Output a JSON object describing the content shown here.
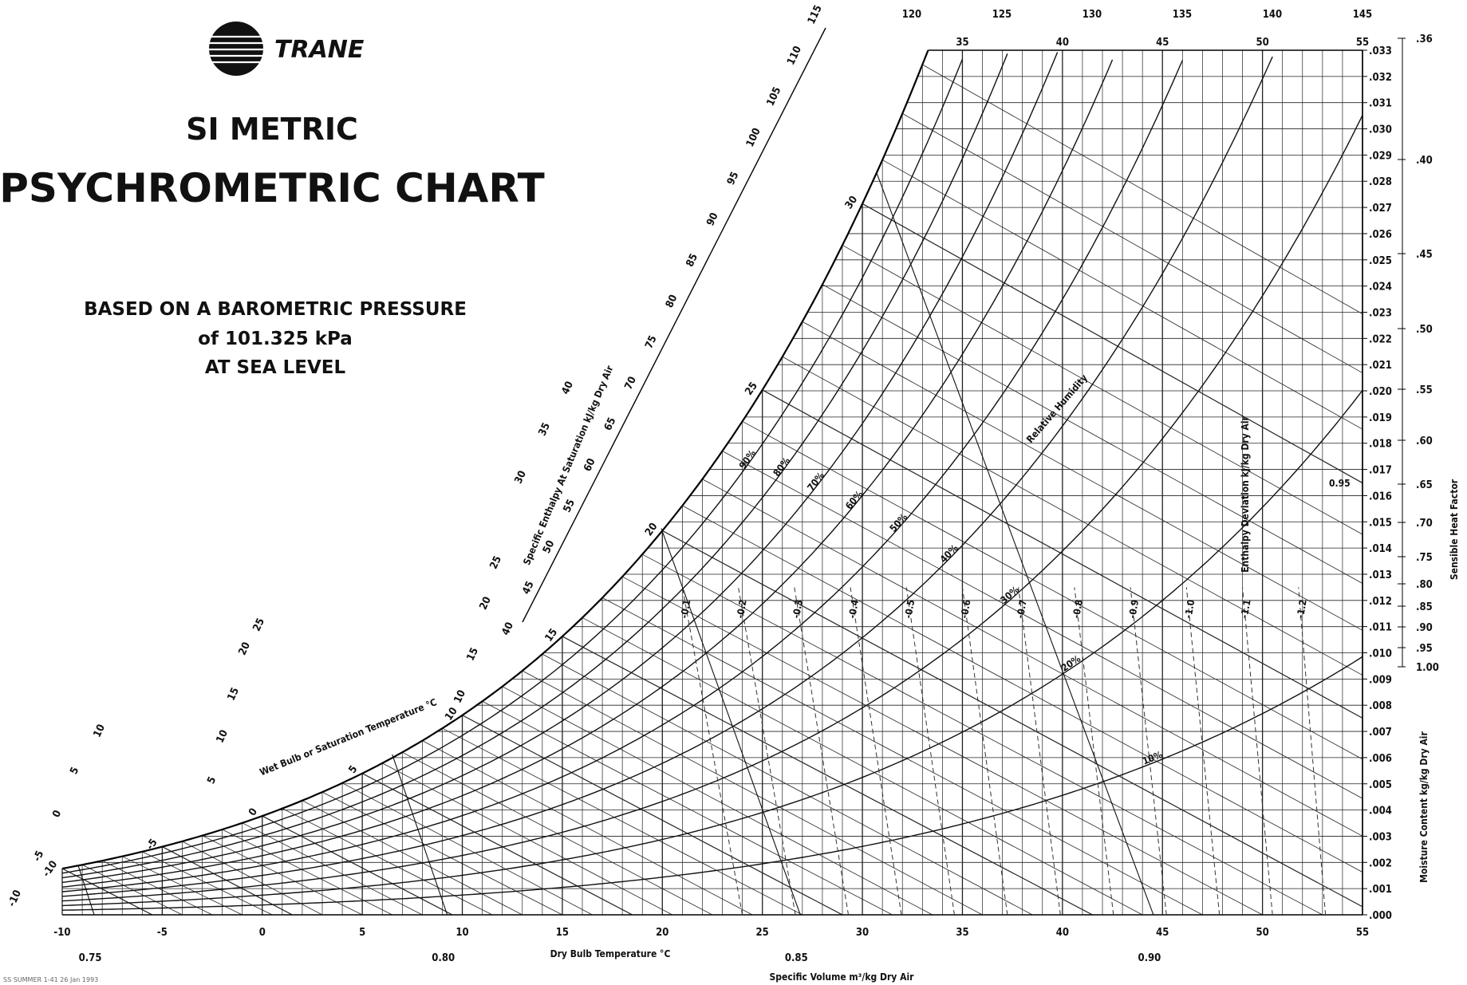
{
  "brand": {
    "name": "TRANE",
    "color": "#111111"
  },
  "title": {
    "line1": "SI METRIC",
    "line2": "PSYCHROMETRIC CHART"
  },
  "subtitle": {
    "line1": "BASED ON A BAROMETRIC PRESSURE",
    "line2": "of 101.325 kPa",
    "line3": "AT SEA LEVEL"
  },
  "footer_code": "SS SUMMER 1-41  26 Jan 1993",
  "chart_data": {
    "type": "psychrometric",
    "pressure_kPa": 101.325,
    "x_axis": {
      "label": "Dry Bulb Temperature °C",
      "range": [
        -10,
        55
      ],
      "ticks": [
        -10,
        -5,
        0,
        5,
        10,
        15,
        20,
        25,
        30,
        35,
        40,
        45,
        50,
        55
      ],
      "tick_labels": [
        "-10",
        "-5",
        "0",
        "5",
        "10",
        "15",
        "20",
        "25",
        "30",
        "35",
        "40",
        "45",
        "50",
        "55"
      ],
      "top_tick_labels": [
        "35",
        "40",
        "45",
        "50",
        "55"
      ]
    },
    "y_axis": {
      "label": "Moisture Content  kg/kg Dry Air",
      "range": [
        0,
        0.033
      ],
      "ticks": [
        0.0,
        0.001,
        0.002,
        0.003,
        0.004,
        0.005,
        0.006,
        0.007,
        0.008,
        0.009,
        0.01,
        0.011,
        0.012,
        0.013,
        0.014,
        0.015,
        0.016,
        0.017,
        0.018,
        0.019,
        0.02,
        0.021,
        0.022,
        0.023,
        0.024,
        0.025,
        0.026,
        0.027,
        0.028,
        0.029,
        0.03,
        0.031,
        0.032,
        0.033
      ],
      "tick_labels": [
        ".000",
        ".001",
        ".002",
        ".003",
        ".004",
        ".005",
        ".006",
        ".007",
        ".008",
        ".009",
        ".010",
        ".011",
        ".012",
        ".013",
        ".014",
        ".015",
        ".016",
        ".017",
        ".018",
        ".019",
        ".020",
        ".021",
        ".022",
        ".023",
        ".024",
        ".025",
        ".026",
        ".027",
        ".028",
        ".029",
        ".030",
        ".031",
        ".032",
        ".033"
      ]
    },
    "relative_humidity": {
      "label": "Relative Humidity",
      "values": [
        10,
        20,
        30,
        40,
        50,
        60,
        70,
        80,
        90
      ],
      "labels": [
        "10%",
        "20%",
        "30%",
        "40%",
        "50%",
        "60%",
        "70%",
        "80%",
        "90%"
      ]
    },
    "wet_bulb": {
      "label": "Wet Bulb or Saturation Temperature °C",
      "values": [
        -10,
        -5,
        0,
        5,
        10,
        15,
        20,
        25,
        30
      ],
      "labels": [
        "-10",
        "-5",
        "0",
        "5",
        "10",
        "15",
        "20",
        "25",
        "30"
      ]
    },
    "enthalpy_at_saturation": {
      "label": "Specific Enthalpy At Saturation kJ/kg Dry Air",
      "scale_labels": [
        "40",
        "45",
        "50",
        "55",
        "60",
        "65",
        "70",
        "75",
        "80",
        "85",
        "90",
        "95",
        "100",
        "105",
        "110",
        "115"
      ],
      "top_labels": [
        "120",
        "125",
        "130",
        "135",
        "140",
        "145"
      ],
      "left_scale_labels": [
        "-10",
        "-5",
        "0",
        "5",
        "10",
        "5",
        "10",
        "15",
        "20",
        "25",
        "10",
        "15",
        "20",
        "25",
        "30",
        "35",
        "40"
      ]
    },
    "specific_volume": {
      "label": "Specific Volume m³/kg Dry Air",
      "labels": [
        "0.75",
        "0.80",
        "0.85",
        "0.90"
      ]
    },
    "enthalpy_deviation": {
      "label": "Enthalpy Deviation kJ/kg Dry Air",
      "labels": [
        "-0.1",
        "-0.2",
        "-0.3",
        "-0.4",
        "-0.5",
        "-0.6",
        "-0.7",
        "-0.8",
        "-0.9",
        "-1.0",
        "-1.1",
        "-1.2"
      ]
    },
    "sensible_heat_factor": {
      "label": "Sensible Heat Factor",
      "values": [
        ".36",
        ".40",
        ".45",
        ".50",
        ".55",
        ".60",
        ".65",
        ".70",
        ".75",
        ".80",
        ".85",
        ".90",
        ".95",
        "1.00"
      ],
      "protractor_label": "0.95"
    }
  }
}
